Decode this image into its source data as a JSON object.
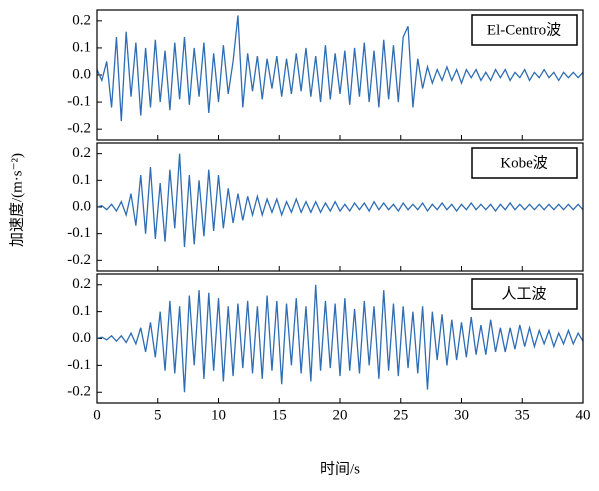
{
  "chart_data": [
    {
      "type": "line",
      "xlim": [
        0,
        40
      ],
      "ylim": [
        -0.24,
        0.24
      ],
      "yticks": [
        0.2,
        0.1,
        {
          "value": 0,
          "label": "0.0"
        },
        -0.1,
        -0.2
      ],
      "x": [
        0,
        0.4,
        0.8,
        1.2,
        1.6,
        2,
        2.4,
        2.8,
        3.2,
        3.6,
        4,
        4.4,
        4.8,
        5.2,
        5.6,
        6,
        6.4,
        6.8,
        7.2,
        7.6,
        8,
        8.4,
        8.8,
        9.2,
        9.6,
        10,
        10.4,
        10.8,
        11.2,
        11.6,
        12,
        12.4,
        12.8,
        13.2,
        13.6,
        14,
        14.4,
        14.8,
        15.2,
        15.6,
        16,
        16.4,
        16.8,
        17.2,
        17.6,
        18,
        18.4,
        18.8,
        19.2,
        19.6,
        20,
        20.4,
        20.8,
        21.2,
        21.6,
        22,
        22.4,
        22.8,
        23.2,
        23.6,
        24,
        24.4,
        24.8,
        25.2,
        25.6,
        26,
        26.4,
        26.8,
        27.2,
        27.6,
        28,
        28.4,
        28.8,
        29.2,
        29.6,
        30,
        30.4,
        30.8,
        31.2,
        31.6,
        32,
        32.4,
        32.8,
        33.2,
        33.6,
        34,
        34.4,
        34.8,
        35.2,
        35.6,
        36,
        36.4,
        36.8,
        37.2,
        37.6,
        38,
        38.4,
        38.8,
        39.2,
        39.6,
        40
      ],
      "series": [
        {
          "name": "El-Centro波",
          "color": "#2e6db4",
          "values": [
            0.02,
            -0.02,
            0.05,
            -0.12,
            0.14,
            -0.17,
            0.16,
            -0.08,
            0.12,
            -0.15,
            0.1,
            -0.12,
            0.13,
            -0.1,
            0.09,
            -0.13,
            0.12,
            -0.09,
            0.14,
            -0.11,
            0.1,
            -0.08,
            0.12,
            -0.14,
            0.08,
            -0.1,
            0.11,
            -0.07,
            0.05,
            0.22,
            -0.12,
            0.08,
            -0.06,
            0.07,
            -0.09,
            0.06,
            -0.05,
            0.07,
            -0.08,
            0.06,
            -0.07,
            0.08,
            -0.06,
            0.1,
            -0.08,
            0.07,
            -0.1,
            0.11,
            -0.09,
            0.08,
            -0.07,
            0.09,
            -0.11,
            0.1,
            -0.08,
            0.12,
            -0.1,
            0.09,
            -0.12,
            0.13,
            -0.09,
            0.11,
            -0.1,
            0.14,
            0.18,
            -0.12,
            0.06,
            -0.05,
            0.03,
            -0.03,
            0.02,
            -0.02,
            0.03,
            -0.02,
            0.02,
            -0.03,
            0.02,
            -0.01,
            0.02,
            -0.02,
            0.01,
            -0.02,
            0.02,
            -0.01,
            0.02,
            -0.02,
            0.01,
            -0.01,
            0.02,
            -0.02,
            0.01,
            -0.01,
            0.02,
            -0.01,
            0.01,
            -0.02,
            0.01,
            -0.01,
            0.01,
            -0.01,
            0.01
          ]
        }
      ]
    },
    {
      "type": "line",
      "xlim": [
        0,
        40
      ],
      "ylim": [
        -0.24,
        0.24
      ],
      "ylabel": "加速度/(m·s⁻²)",
      "yticks": [
        0.2,
        0.1,
        {
          "value": 0,
          "label": "0.0"
        },
        -0.1,
        -0.2
      ],
      "x": [
        0,
        0.4,
        0.8,
        1.2,
        1.6,
        2,
        2.4,
        2.8,
        3.2,
        3.6,
        4,
        4.4,
        4.8,
        5.2,
        5.6,
        6,
        6.4,
        6.8,
        7.2,
        7.6,
        8,
        8.4,
        8.8,
        9.2,
        9.6,
        10,
        10.4,
        10.8,
        11.2,
        11.6,
        12,
        12.4,
        12.8,
        13.2,
        13.6,
        14,
        14.4,
        14.8,
        15.2,
        15.6,
        16,
        16.4,
        16.8,
        17.2,
        17.6,
        18,
        18.4,
        18.8,
        19.2,
        19.6,
        20,
        20.4,
        20.8,
        21.2,
        21.6,
        22,
        22.4,
        22.8,
        23.2,
        23.6,
        24,
        24.4,
        24.8,
        25.2,
        25.6,
        26,
        26.4,
        26.8,
        27.2,
        27.6,
        28,
        28.4,
        28.8,
        29.2,
        29.6,
        30,
        30.4,
        30.8,
        31.2,
        31.6,
        32,
        32.4,
        32.8,
        33.2,
        33.6,
        34,
        34.4,
        34.8,
        35.2,
        35.6,
        36,
        36.4,
        36.8,
        37.2,
        37.6,
        38,
        38.4,
        38.8,
        39.2,
        39.6,
        40
      ],
      "series": [
        {
          "name": "Kobe波",
          "color": "#2e6db4",
          "values": [
            0,
            0.005,
            -0.01,
            0.01,
            -0.015,
            0.02,
            -0.03,
            0.05,
            -0.07,
            0.12,
            -0.1,
            0.15,
            -0.12,
            0.09,
            -0.13,
            0.14,
            -0.08,
            0.2,
            -0.15,
            0.12,
            -0.14,
            0.1,
            -0.11,
            0.14,
            -0.09,
            0.12,
            -0.08,
            0.07,
            -0.06,
            0.05,
            -0.05,
            0.04,
            -0.03,
            0.04,
            -0.03,
            0.03,
            -0.02,
            0.03,
            -0.03,
            0.02,
            -0.02,
            0.03,
            -0.02,
            0.02,
            -0.02,
            0.02,
            -0.02,
            0.015,
            -0.015,
            0.02,
            -0.015,
            0.01,
            -0.015,
            0.015,
            -0.01,
            0.015,
            -0.015,
            0.02,
            -0.01,
            0.015,
            -0.01,
            0.01,
            -0.015,
            0.015,
            -0.01,
            0.01,
            -0.01,
            0.015,
            -0.015,
            0.01,
            -0.01,
            0.015,
            -0.01,
            0.01,
            -0.015,
            0.01,
            -0.01,
            0.015,
            -0.01,
            0.01,
            -0.01,
            0.01,
            -0.015,
            0.01,
            -0.01,
            0.015,
            -0.01,
            0.01,
            -0.01,
            0.01,
            -0.01,
            0.01,
            -0.01,
            0.01,
            -0.01,
            0.01,
            -0.01,
            0.01,
            -0.01,
            0.01,
            -0.01
          ]
        }
      ]
    },
    {
      "type": "line",
      "xlim": [
        0,
        40
      ],
      "ylim": [
        -0.24,
        0.24
      ],
      "xlabel": "时间/s",
      "xticks": [
        0,
        5,
        10,
        15,
        20,
        25,
        30,
        35,
        40
      ],
      "yticks": [
        0.2,
        0.1,
        {
          "value": 0,
          "label": "0.0"
        },
        -0.1,
        -0.2
      ],
      "x": [
        0,
        0.4,
        0.8,
        1.2,
        1.6,
        2,
        2.4,
        2.8,
        3.2,
        3.6,
        4,
        4.4,
        4.8,
        5.2,
        5.6,
        6,
        6.4,
        6.8,
        7.2,
        7.6,
        8,
        8.4,
        8.8,
        9.2,
        9.6,
        10,
        10.4,
        10.8,
        11.2,
        11.6,
        12,
        12.4,
        12.8,
        13.2,
        13.6,
        14,
        14.4,
        14.8,
        15.2,
        15.6,
        16,
        16.4,
        16.8,
        17.2,
        17.6,
        18,
        18.4,
        18.8,
        19.2,
        19.6,
        20,
        20.4,
        20.8,
        21.2,
        21.6,
        22,
        22.4,
        22.8,
        23.2,
        23.6,
        24,
        24.4,
        24.8,
        25.2,
        25.6,
        26,
        26.4,
        26.8,
        27.2,
        27.6,
        28,
        28.4,
        28.8,
        29.2,
        29.6,
        30,
        30.4,
        30.8,
        31.2,
        31.6,
        32,
        32.4,
        32.8,
        33.2,
        33.6,
        34,
        34.4,
        34.8,
        35.2,
        35.6,
        36,
        36.4,
        36.8,
        37.2,
        37.6,
        38,
        38.4,
        38.8,
        39.2,
        39.6,
        40
      ],
      "series": [
        {
          "name": "人工波",
          "color": "#2e6db4",
          "values": [
            0,
            0.005,
            -0.005,
            0.01,
            -0.01,
            0.01,
            -0.015,
            0.02,
            -0.02,
            0.04,
            -0.05,
            0.06,
            -0.07,
            0.1,
            -0.12,
            0.14,
            -0.13,
            0.12,
            -0.2,
            0.16,
            -0.1,
            0.18,
            -0.15,
            0.17,
            -0.12,
            0.15,
            -0.16,
            0.12,
            -0.14,
            0.13,
            -0.11,
            0.14,
            -0.13,
            0.12,
            -0.15,
            0.16,
            -0.12,
            0.14,
            -0.17,
            0.13,
            -0.1,
            0.15,
            -0.13,
            0.12,
            -0.16,
            0.2,
            -0.12,
            0.14,
            -0.11,
            0.13,
            -0.14,
            0.15,
            -0.12,
            0.11,
            -0.13,
            0.14,
            -0.1,
            0.12,
            -0.15,
            0.18,
            -0.12,
            0.13,
            -0.14,
            0.12,
            -0.11,
            0.1,
            -0.13,
            0.12,
            -0.19,
            0.1,
            -0.08,
            0.09,
            -0.1,
            0.07,
            -0.08,
            0.06,
            -0.07,
            0.08,
            -0.06,
            0.05,
            -0.06,
            0.07,
            -0.05,
            0.04,
            -0.05,
            0.04,
            -0.04,
            0.05,
            -0.03,
            0.04,
            -0.03,
            0.03,
            -0.02,
            0.03,
            -0.03,
            0.02,
            -0.02,
            0.03,
            -0.02,
            0.02,
            -0.01
          ]
        }
      ]
    }
  ]
}
